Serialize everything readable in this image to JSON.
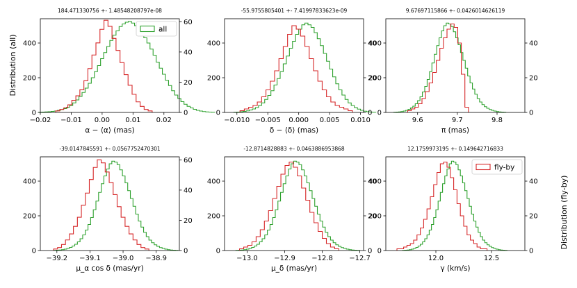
{
  "figure": {
    "left_axis_label": "Distribution (all)",
    "right_axis_label": "Distribution (fly-by)"
  },
  "colors": {
    "all": "#2ca02c",
    "flyby": "#d62728"
  },
  "chart_data": [
    {
      "type": "histogram",
      "title": "184.471330756 +- 1.48548208797e-08",
      "xlabel": "α − ⟨α⟩ (mas)",
      "xlim": [
        -0.02,
        0.025
      ],
      "xticks": [
        -0.02,
        -0.01,
        0.0,
        0.01,
        0.02
      ],
      "xtick_labels": [
        "−0.02",
        "−0.01",
        "0.00",
        "0.01",
        "0.02"
      ],
      "ylim_left": [
        0,
        540
      ],
      "yticks_left": [
        0,
        200,
        400
      ],
      "ylim_right": [
        0,
        62
      ],
      "yticks_right": [
        0,
        20,
        40,
        60
      ],
      "legend": "all",
      "series": [
        {
          "name": "all",
          "axis": "left",
          "bin_start": -0.0205,
          "bin_width": 0.001,
          "values": [
            1,
            2,
            3,
            4,
            6,
            8,
            12,
            16,
            22,
            30,
            40,
            55,
            72,
            92,
            115,
            140,
            168,
            200,
            235,
            270,
            310,
            345,
            380,
            415,
            445,
            470,
            495,
            510,
            520,
            525,
            515,
            500,
            485,
            460,
            430,
            400,
            365,
            330,
            290,
            255,
            220,
            185,
            155,
            125,
            100,
            80,
            62,
            47,
            35,
            26,
            18,
            12,
            8,
            5,
            3,
            2,
            1
          ]
        },
        {
          "name": "fly-by",
          "axis": "right",
          "bin_start": -0.015,
          "bin_width": 0.0013,
          "values": [
            1,
            2,
            3,
            5,
            8,
            11,
            15,
            21,
            29,
            38,
            46,
            55,
            61,
            57,
            49,
            41,
            33,
            25,
            18,
            12,
            7,
            4,
            2,
            1
          ]
        }
      ]
    },
    {
      "type": "histogram",
      "title": "-55.9755805401 +- 7.41997833623e-09",
      "xlabel": "δ − ⟨δ⟩ (mas)",
      "xlim": [
        -0.012,
        0.0105
      ],
      "xticks": [
        -0.01,
        -0.005,
        0.0,
        0.005,
        0.01
      ],
      "xtick_labels": [
        "−0.010",
        "−0.005",
        "0.000",
        "0.005",
        "0.010"
      ],
      "ylim_left": [
        0,
        540
      ],
      "yticks_left": [
        0,
        200,
        400
      ],
      "ylim_right": [
        0,
        54
      ],
      "yticks_right": [
        0,
        20,
        40
      ],
      "legend": "",
      "series": [
        {
          "name": "all",
          "axis": "left",
          "bin_start": -0.0105,
          "bin_width": 0.0005,
          "values": [
            1,
            2,
            4,
            6,
            9,
            14,
            20,
            28,
            40,
            55,
            75,
            98,
            125,
            158,
            195,
            235,
            280,
            325,
            370,
            410,
            450,
            480,
            505,
            515,
            505,
            490,
            460,
            425,
            385,
            340,
            295,
            250,
            205,
            165,
            130,
            100,
            75,
            55,
            40,
            28,
            19,
            12,
            7,
            4,
            2,
            1
          ]
        },
        {
          "name": "fly-by",
          "axis": "right",
          "bin_start": -0.0095,
          "bin_width": 0.0007,
          "values": [
            1,
            2,
            3,
            4,
            6,
            9,
            13,
            18,
            24,
            31,
            38,
            45,
            50,
            48,
            44,
            38,
            31,
            24,
            18,
            13,
            9,
            6,
            4,
            3,
            2,
            1
          ]
        }
      ]
    },
    {
      "type": "histogram",
      "title": "9.67697115866 +- 0.0426014626119",
      "xlabel": "π (mas)",
      "xlim": [
        9.52,
        9.87
      ],
      "xticks": [
        9.6,
        9.7,
        9.8
      ],
      "xtick_labels": [
        "9.6",
        "9.7",
        "9.8"
      ],
      "ylim_left": [
        0,
        540
      ],
      "yticks_left": [
        0,
        200,
        400
      ],
      "ylim_right": [
        0,
        54
      ],
      "yticks_right": [
        0,
        20,
        40
      ],
      "legend": "",
      "series": [
        {
          "name": "all",
          "axis": "left",
          "bin_start": 9.54,
          "bin_width": 0.006,
          "values": [
            1,
            2,
            3,
            5,
            8,
            12,
            18,
            26,
            36,
            50,
            68,
            90,
            118,
            150,
            190,
            235,
            285,
            335,
            385,
            430,
            470,
            500,
            515,
            510,
            495,
            465,
            430,
            390,
            345,
            300,
            255,
            210,
            170,
            135,
            105,
            80,
            60,
            45,
            33,
            24,
            17,
            12,
            8,
            5,
            3,
            2,
            1
          ]
        },
        {
          "name": "fly-by",
          "axis": "right",
          "bin_start": 9.575,
          "bin_width": 0.009,
          "values": [
            1,
            2,
            3,
            5,
            8,
            12,
            17,
            23,
            30,
            37,
            43,
            48,
            51,
            49,
            40,
            22,
            3
          ]
        }
      ]
    },
    {
      "type": "histogram",
      "title": "-39.0147845591 +- 0.0567752470301",
      "xlabel": "μ_α cos δ (mas/yr)",
      "xlim": [
        -39.25,
        -38.83
      ],
      "xticks": [
        -39.2,
        -39.1,
        -39.0,
        -38.9
      ],
      "xtick_labels": [
        "−39.2",
        "−39.1",
        "−39.0",
        "−38.9"
      ],
      "ylim_left": [
        0,
        540
      ],
      "yticks_left": [
        0,
        200,
        400
      ],
      "ylim_right": [
        0,
        62
      ],
      "yticks_right": [
        0,
        20,
        40,
        60
      ],
      "legend": "",
      "series": [
        {
          "name": "all",
          "axis": "left",
          "bin_start": -39.21,
          "bin_width": 0.008,
          "values": [
            1,
            2,
            3,
            5,
            8,
            12,
            18,
            26,
            36,
            50,
            68,
            90,
            118,
            150,
            190,
            235,
            285,
            335,
            385,
            430,
            470,
            500,
            515,
            510,
            495,
            465,
            430,
            390,
            345,
            300,
            255,
            210,
            170,
            135,
            105,
            80,
            60,
            45,
            33,
            24,
            17,
            12,
            8,
            5,
            3,
            2,
            1
          ]
        },
        {
          "name": "fly-by",
          "axis": "right",
          "bin_start": -39.21,
          "bin_width": 0.012,
          "values": [
            1,
            2,
            4,
            7,
            11,
            16,
            22,
            30,
            38,
            47,
            55,
            60,
            58,
            52,
            45,
            37,
            29,
            22,
            16,
            11,
            7,
            4,
            2,
            1
          ]
        }
      ]
    },
    {
      "type": "histogram",
      "title": "-12.8714828883 +- 0.0463886953868",
      "xlabel": "μ_δ (mas/yr)",
      "xlim": [
        -13.06,
        -12.69
      ],
      "xticks": [
        -13.0,
        -12.9,
        -12.8,
        -12.7
      ],
      "xtick_labels": [
        "−13.0",
        "−12.9",
        "−12.8",
        "−12.7"
      ],
      "ylim_left": [
        0,
        540
      ],
      "yticks_left": [
        0,
        200,
        400
      ],
      "ylim_right": [
        0,
        54
      ],
      "yticks_right": [
        0,
        20,
        40
      ],
      "legend": "",
      "series": [
        {
          "name": "all",
          "axis": "left",
          "bin_start": -13.03,
          "bin_width": 0.007,
          "values": [
            1,
            2,
            3,
            5,
            8,
            12,
            18,
            26,
            36,
            50,
            68,
            90,
            118,
            150,
            190,
            235,
            285,
            335,
            385,
            430,
            470,
            500,
            515,
            510,
            495,
            465,
            430,
            390,
            345,
            300,
            255,
            210,
            170,
            135,
            105,
            80,
            60,
            45,
            33,
            24,
            17,
            12,
            8,
            5,
            3,
            2,
            1
          ]
        },
        {
          "name": "fly-by",
          "axis": "right",
          "bin_start": -13.02,
          "bin_width": 0.011,
          "values": [
            1,
            2,
            3,
            5,
            8,
            12,
            17,
            23,
            30,
            37,
            44,
            49,
            51,
            48,
            43,
            36,
            29,
            22,
            16,
            11,
            7,
            4,
            2,
            1
          ]
        }
      ]
    },
    {
      "type": "histogram",
      "title": "12.1759973195 +- 0.149642716833",
      "xlabel": "γ (km/s)",
      "xlim": [
        11.55,
        12.8
      ],
      "xticks": [
        12.0,
        12.5
      ],
      "xtick_labels": [
        "12.0",
        "12.5"
      ],
      "ylim_left": [
        0,
        540
      ],
      "yticks_left": [
        0,
        200,
        400
      ],
      "ylim_right": [
        0,
        54
      ],
      "yticks_right": [
        0,
        20,
        40
      ],
      "legend": "fly-by",
      "series": [
        {
          "name": "all",
          "axis": "left",
          "bin_start": 11.7,
          "bin_width": 0.02,
          "values": [
            1,
            2,
            3,
            5,
            8,
            12,
            18,
            26,
            36,
            50,
            68,
            90,
            118,
            150,
            190,
            235,
            285,
            335,
            385,
            430,
            470,
            500,
            515,
            510,
            495,
            465,
            430,
            390,
            345,
            300,
            255,
            210,
            170,
            135,
            105,
            80,
            60,
            45,
            33,
            24,
            17,
            12,
            8,
            5,
            3,
            2,
            1
          ]
        },
        {
          "name": "fly-by",
          "axis": "right",
          "bin_start": 11.65,
          "bin_width": 0.03,
          "values": [
            1,
            1,
            2,
            3,
            4,
            6,
            9,
            13,
            18,
            24,
            31,
            38,
            45,
            50,
            51,
            48,
            42,
            35,
            27,
            20,
            14,
            9,
            6,
            4,
            2,
            1,
            1
          ]
        }
      ]
    }
  ]
}
